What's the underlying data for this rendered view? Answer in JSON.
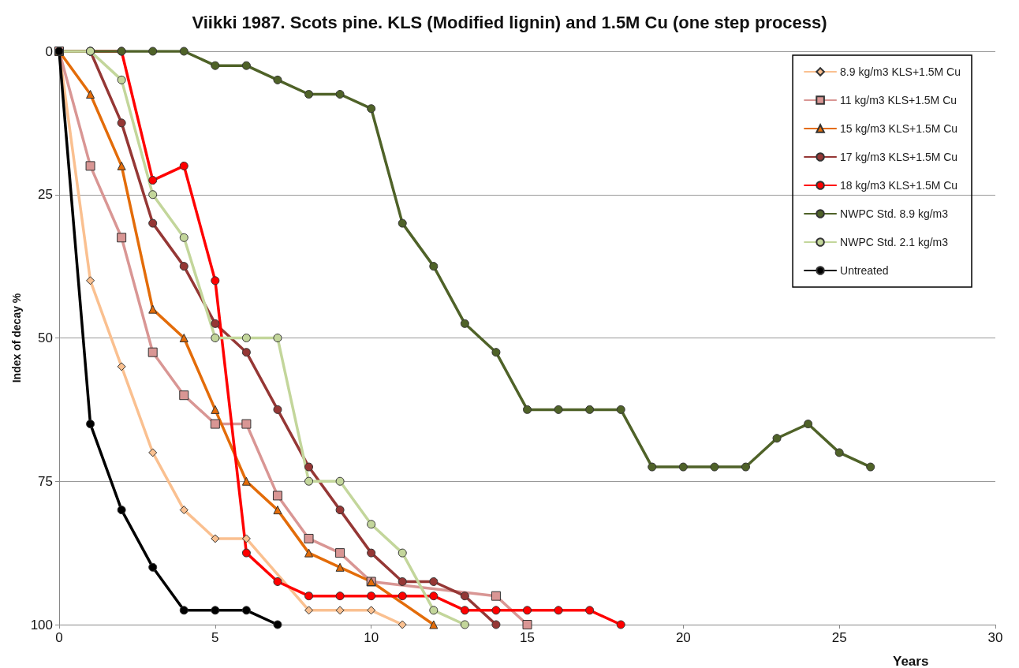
{
  "chart_data": {
    "type": "line",
    "title": "Viikki 1987. Scots pine. KLS (Modified lignin) and 1.5M Cu (one step process)",
    "xlabel": "Years",
    "ylabel": "Index of decay %",
    "xlim": [
      0,
      30
    ],
    "xticks": [
      0,
      5,
      10,
      15,
      20,
      25,
      30
    ],
    "ylim": [
      100,
      0
    ],
    "yticks": [
      0,
      25,
      50,
      75,
      100
    ],
    "grid": "y",
    "legend": "top right",
    "series": [
      {
        "name": "8.9 kg/m3 KLS+1.5M Cu",
        "color": "#fac090",
        "marker": "diamond",
        "x": [
          0,
          1,
          2,
          3,
          4,
          5,
          6,
          7,
          8,
          9,
          10,
          11
        ],
        "values": [
          0,
          40,
          55,
          70,
          80,
          85,
          85,
          null,
          97.5,
          97.5,
          97.5,
          100
        ]
      },
      {
        "name": "11 kg/m3 KLS+1.5M Cu",
        "color": "#d99694",
        "marker": "square",
        "x": [
          0,
          1,
          2,
          3,
          4,
          5,
          6,
          7,
          8,
          9,
          10,
          11,
          12,
          13,
          14,
          15
        ],
        "values": [
          0,
          20,
          32.5,
          52.5,
          60,
          65,
          65,
          77.5,
          85,
          87.5,
          92.5,
          null,
          null,
          null,
          95,
          100
        ]
      },
      {
        "name": "15 kg/m3 KLS+1.5M Cu",
        "color": "#e36c09",
        "marker": "triangle",
        "x": [
          0,
          1,
          2,
          3,
          4,
          5,
          6,
          7,
          8,
          9,
          10,
          11,
          12
        ],
        "values": [
          0,
          7.5,
          20,
          45,
          50,
          62.5,
          75,
          80,
          87.5,
          90,
          92.5,
          null,
          100
        ]
      },
      {
        "name": "17 kg/m3 KLS+1.5M Cu",
        "color": "#953735",
        "marker": "circle",
        "x": [
          0,
          1,
          2,
          3,
          4,
          5,
          6,
          7,
          8,
          9,
          10,
          11,
          12,
          13,
          14
        ],
        "values": [
          0,
          0,
          12.5,
          30,
          37.5,
          47.5,
          52.5,
          62.5,
          72.5,
          80,
          87.5,
          92.5,
          92.5,
          95,
          100
        ]
      },
      {
        "name": "18 kg/m3 KLS+1.5M Cu",
        "color": "#ff0000",
        "marker": "circle",
        "x": [
          0,
          1,
          2,
          3,
          4,
          5,
          6,
          7,
          8,
          9,
          10,
          11,
          12,
          13,
          14,
          15,
          16,
          17,
          18
        ],
        "values": [
          0,
          0,
          0,
          22.5,
          20,
          40,
          87.5,
          92.5,
          95,
          95,
          95,
          95,
          95,
          97.5,
          97.5,
          97.5,
          97.5,
          97.5,
          100
        ]
      },
      {
        "name": "NWPC Std. 8.9 kg/m3",
        "color": "#4f6228",
        "marker": "circle",
        "x": [
          0,
          1,
          2,
          3,
          4,
          5,
          6,
          7,
          8,
          9,
          10,
          11,
          12,
          13,
          14,
          15,
          16,
          17,
          18,
          19,
          20,
          21,
          22,
          23,
          24,
          25,
          26
        ],
        "values": [
          0,
          0,
          0,
          0,
          0,
          2.5,
          2.5,
          5,
          7.5,
          7.5,
          10,
          30,
          37.5,
          47.5,
          52.5,
          62.5,
          62.5,
          62.5,
          62.5,
          72.5,
          72.5,
          72.5,
          72.5,
          67.5,
          65,
          70,
          72.5
        ]
      },
      {
        "name": "NWPC Std. 2.1 kg/m3",
        "color": "#c3d69b",
        "marker": "circle",
        "x": [
          0,
          1,
          2,
          3,
          4,
          5,
          6,
          7,
          8,
          9,
          10,
          11,
          12,
          13
        ],
        "values": [
          0,
          0,
          5,
          25,
          32.5,
          50,
          50,
          50,
          75,
          75,
          82.5,
          87.5,
          97.5,
          100
        ]
      },
      {
        "name": "Untreated",
        "color": "#000000",
        "marker": "circle",
        "x": [
          0,
          1,
          2,
          3,
          4,
          5,
          6,
          7
        ],
        "values": [
          0,
          65,
          80,
          90,
          97.5,
          97.5,
          97.5,
          100
        ]
      }
    ]
  }
}
